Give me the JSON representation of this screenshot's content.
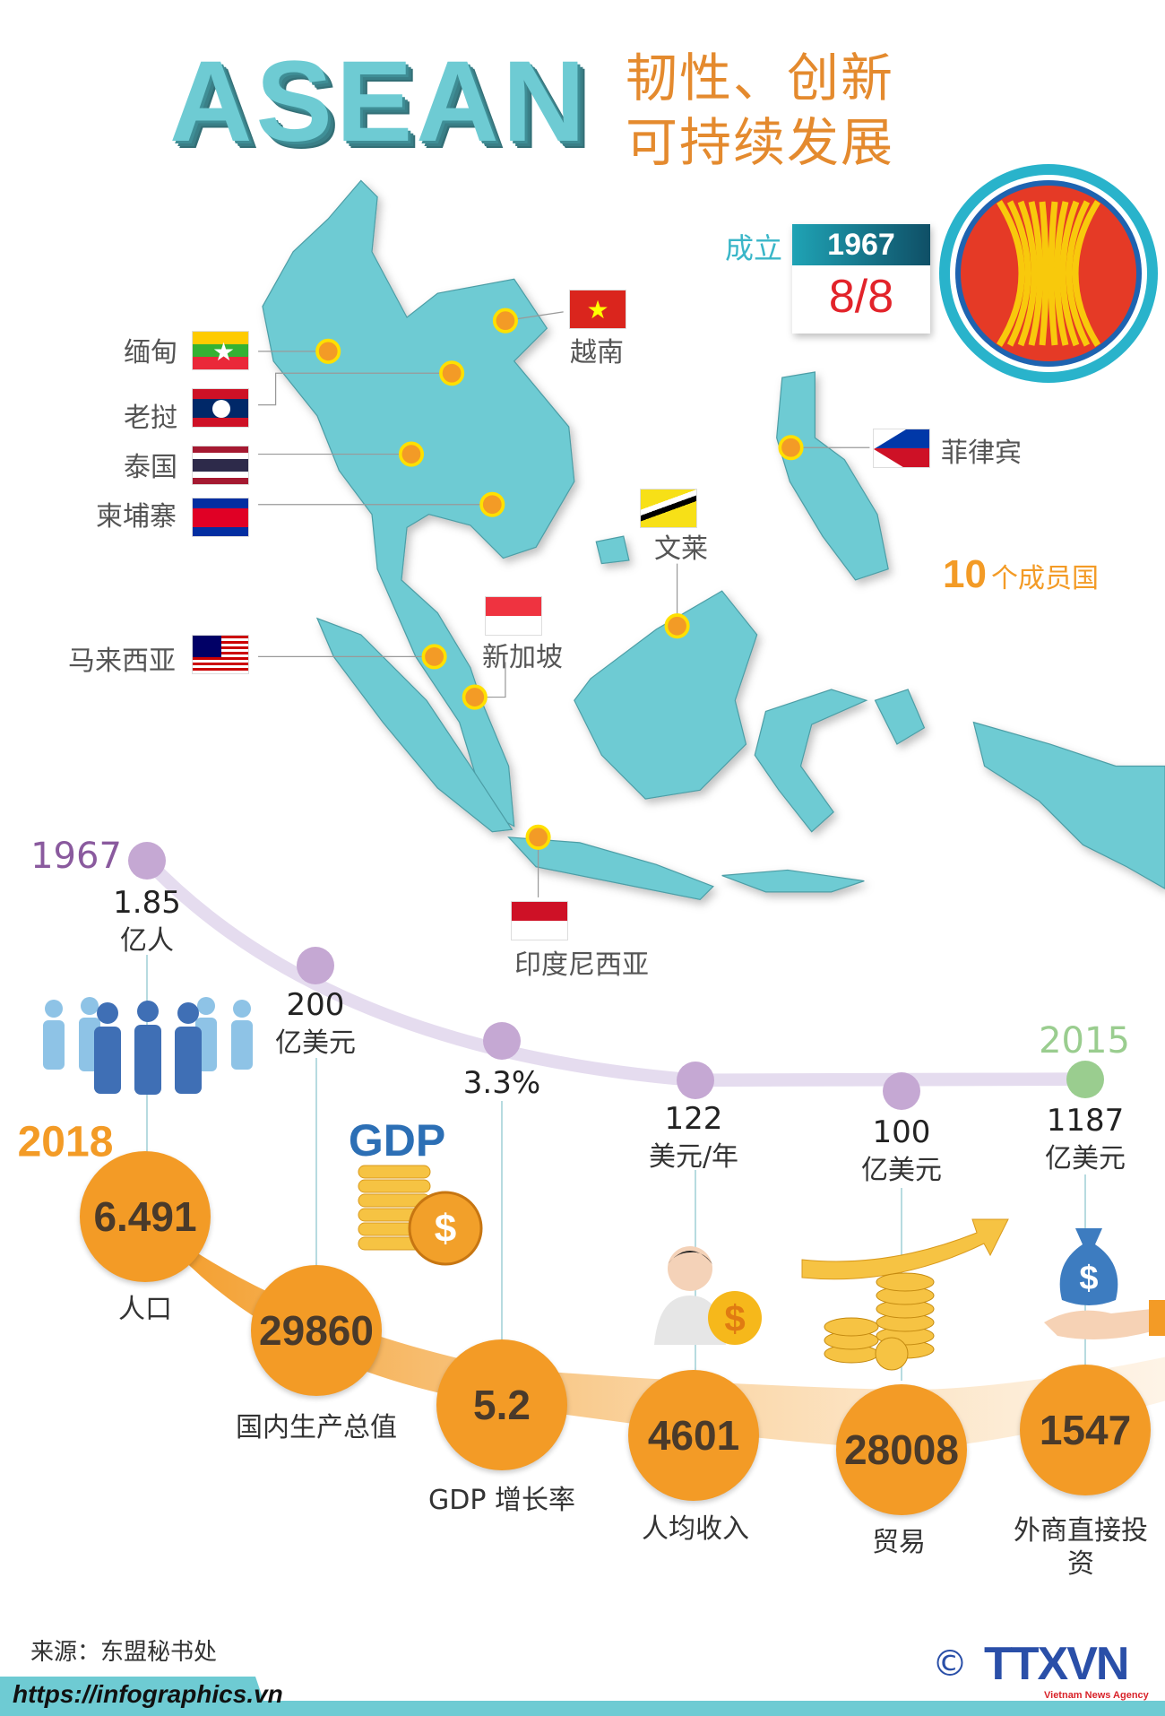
{
  "header": {
    "title": "ASEAN",
    "subtitle_line1": "韧性、创新",
    "subtitle_line2": "可持续发展"
  },
  "founding": {
    "label": "成立",
    "year": "1967",
    "date": "8/8"
  },
  "countries": [
    {
      "name": "缅甸",
      "flag": "myanmar"
    },
    {
      "name": "老挝",
      "flag": "laos"
    },
    {
      "name": "泰国",
      "flag": "thailand"
    },
    {
      "name": "柬埔寨",
      "flag": "cambodia"
    },
    {
      "name": "马来西亚",
      "flag": "malaysia"
    },
    {
      "name": "越南",
      "flag": "vietnam"
    },
    {
      "name": "菲律宾",
      "flag": "philippines"
    },
    {
      "name": "文莱",
      "flag": "brunei"
    },
    {
      "name": "新加坡",
      "flag": "singapore"
    },
    {
      "name": "印度尼西亚",
      "flag": "indonesia"
    }
  ],
  "members": {
    "count": "10",
    "label": "个成员国"
  },
  "timeline": {
    "start_year": "1967",
    "end_year": "2015",
    "current_year": "2018"
  },
  "stats": [
    {
      "top_value": "1.85",
      "top_unit": "亿人",
      "value": "6.491",
      "label": "人口",
      "icon": "people-icon"
    },
    {
      "top_value": "200",
      "top_unit": "亿美元",
      "value": "29860",
      "label": "国内生产总值",
      "icon": "gdp-coins-icon",
      "icon_text": "GDP"
    },
    {
      "top_value": "3.3%",
      "top_unit": "",
      "value": "5.2",
      "label": "GDP 增长率",
      "icon": ""
    },
    {
      "top_value": "122",
      "top_unit": "美元/年",
      "value": "4601",
      "label": "人均收入",
      "icon": "person-dollar-icon"
    },
    {
      "top_value": "100",
      "top_unit": "亿美元",
      "value": "28008",
      "label": "贸易",
      "icon": "coins-arrow-icon"
    },
    {
      "top_value": "1187",
      "top_unit": "亿美元",
      "value": "1547",
      "label": "外商直接投",
      "label2": "资",
      "icon": "money-bag-hand-icon"
    }
  ],
  "footer": {
    "source": "来源：东盟秘书处",
    "url": "https://infographics.vn",
    "copyright": "©",
    "logo": "TTXVN",
    "logo_sub": "Vietnam News Agency"
  },
  "colors": {
    "teal": "#6ECBD3",
    "orange": "#F39B26",
    "purple": "#C5A8D3",
    "green": "#9ACD8F",
    "title_orange": "#E48A2E"
  }
}
